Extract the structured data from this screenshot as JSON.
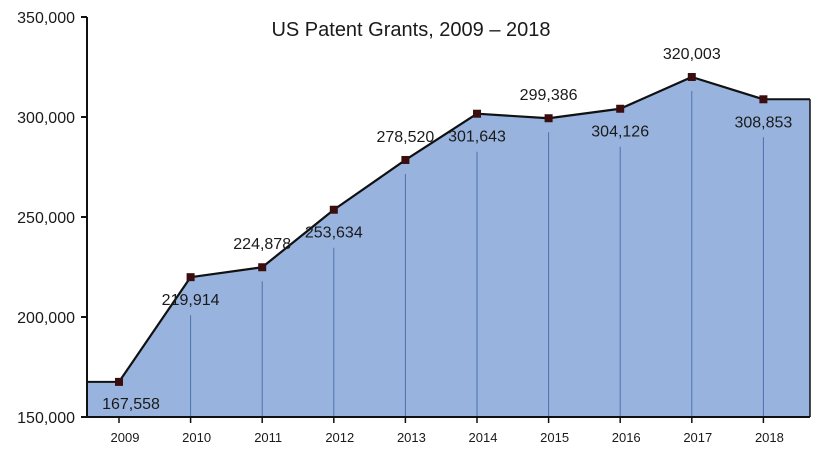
{
  "chart_data": {
    "type": "area",
    "title": "US Patent Grants, 2009 – 2018",
    "xlabel": "",
    "ylabel": "",
    "categories": [
      "2009",
      "2010",
      "2011",
      "2012",
      "2013",
      "2014",
      "2015",
      "2016",
      "2017",
      "2018"
    ],
    "values": [
      167558,
      219914,
      224878,
      253634,
      278520,
      301643,
      299386,
      304126,
      320003,
      308853
    ],
    "data_labels": [
      "167,558",
      "219,914",
      "224,878",
      "253,634",
      "278,520",
      "301,643",
      "299,386",
      "304,126",
      "320,003",
      "308,853"
    ],
    "yticks": [
      150000,
      200000,
      250000,
      300000,
      350000
    ],
    "ytick_labels": [
      "150,000",
      "200,000",
      "250,000",
      "300,000",
      "350,000"
    ],
    "ylim": [
      150000,
      350000
    ],
    "grid": false,
    "legend": "none",
    "colors": {
      "fill": "#98b4de",
      "line": "#111111",
      "marker": "#3a0e0e",
      "dropline": "#4d6fae",
      "axis": "#111111"
    }
  }
}
